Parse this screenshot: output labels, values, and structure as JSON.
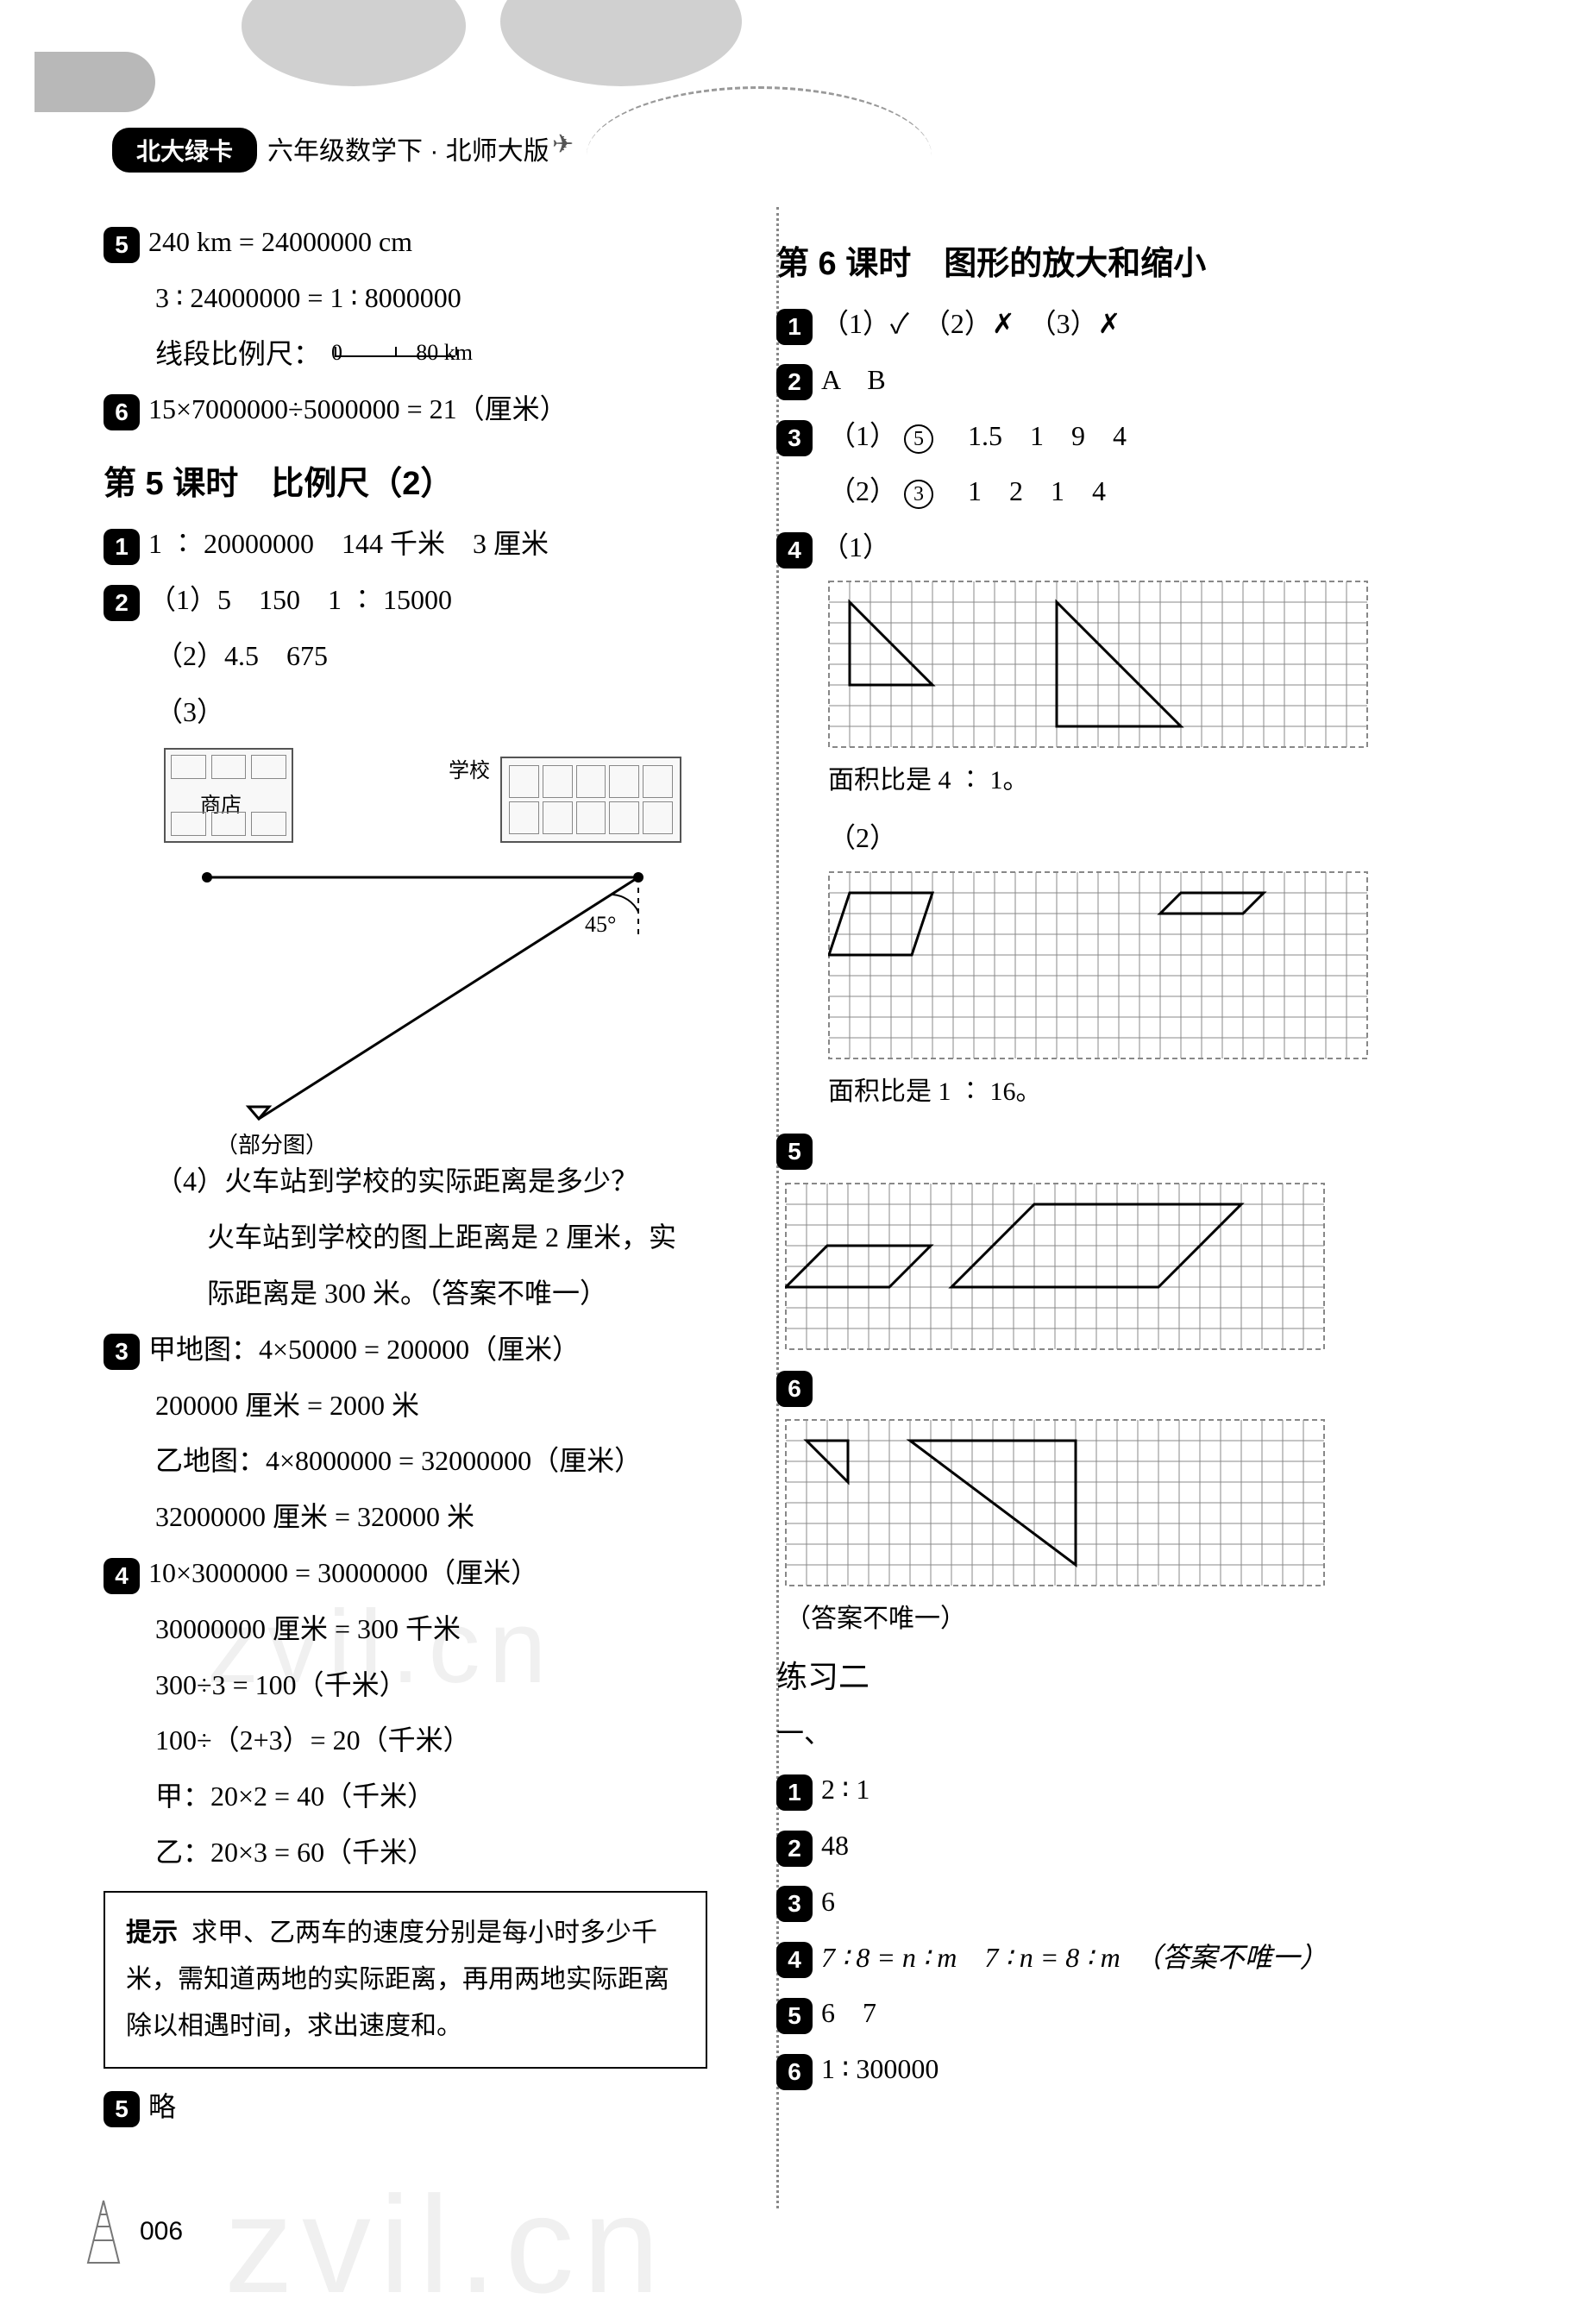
{
  "header": {
    "badge": "北大绿卡",
    "subtitle": "六年级数学下 · 北师大版"
  },
  "left": {
    "q5_l1": "240 km = 24000000 cm",
    "q5_l2": "3 ∶ 24000000 = 1 ∶ 8000000",
    "q5_l3_prefix": "线段比例尺：",
    "q6": "15×7000000÷5000000 = 21（厘米）",
    "section5_title": "第 5 课时　比例尺（2）",
    "s5_q1": "1 ∶ 20000000　144 千米　3 厘米",
    "s5_q2_1": "（1）5　150　1 ∶ 15000",
    "s5_q2_2": "（2）4.5　675",
    "s5_q2_3_label": "（3）",
    "diagram": {
      "shop": "商店",
      "school": "学校",
      "angle": "45°",
      "triangle_label": "（部分图）"
    },
    "s5_q2_4_q": "（4）火车站到学校的实际距离是多少？",
    "s5_q2_4_a1": "火车站到学校的图上距离是 2 厘米，实",
    "s5_q2_4_a2": "际距离是 300 米。（答案不唯一）",
    "s5_q3_l1": "甲地图：4×50000 = 200000（厘米）",
    "s5_q3_l2": "200000 厘米 = 2000 米",
    "s5_q3_l3": "乙地图：4×8000000 = 32000000（厘米）",
    "s5_q3_l4": "32000000 厘米 = 320000 米",
    "s5_q4_l1": "10×3000000 = 30000000（厘米）",
    "s5_q4_l2": "30000000 厘米 = 300 千米",
    "s5_q4_l3": "300÷3 = 100（千米）",
    "s5_q4_l4": "100÷（2+3）= 20（千米）",
    "s5_q4_l5": "甲：20×2 = 40（千米）",
    "s5_q4_l6": "乙：20×3 = 60（千米）",
    "tip_label": "提示",
    "tip_body": "求甲、乙两车的速度分别是每小时多少千米，需知道两地的实际距离，再用两地实际距离除以相遇时间，求出速度和。",
    "s5_q5": "略"
  },
  "right": {
    "section6_title": "第 6 课时　图形的放大和缩小",
    "s6_q1": "（1）✓　（2）✗　（3）✗",
    "s6_q2": "A　B",
    "s6_q3_1_prefix": "（1）",
    "s6_q3_1_circ": "5",
    "s6_q3_1_rest": "　1.5　1　9　4",
    "s6_q3_2_prefix": "（2）",
    "s6_q3_2_circ": "3",
    "s6_q3_2_rest": "　1　2　1　4",
    "s6_q4_1_label": "（1）",
    "s6_q4_1_cap": "面积比是 4 ∶ 1。",
    "s6_q4_2_label": "（2）",
    "s6_q4_2_cap": "面积比是 1 ∶ 16。",
    "s6_q6_cap": "（答案不唯一）",
    "practice_title": "练习二",
    "practice_sec1": "一、",
    "p_q1": "2 ∶ 1",
    "p_q2": "48",
    "p_q3": "6",
    "p_q4": "7 ∶ 8 = n ∶ m　7 ∶ n = 8 ∶ m　（答案不唯一）",
    "p_q5": "6　7",
    "p_q6": "1 ∶ 300000"
  },
  "grids": {
    "cell": 24,
    "stroke": "#888888",
    "shape_stroke": "#000000",
    "shape_width": 3,
    "fig4_1": {
      "cols": 26,
      "rows": 8,
      "triangles": [
        [
          [
            1,
            1
          ],
          [
            1,
            5
          ],
          [
            5,
            5
          ]
        ],
        [
          [
            11,
            1
          ],
          [
            11,
            7
          ],
          [
            17,
            7
          ]
        ]
      ]
    },
    "fig4_2": {
      "cols": 26,
      "rows": 9,
      "paras": [
        [
          [
            1,
            1
          ],
          [
            5,
            1
          ],
          [
            4,
            4
          ],
          [
            0,
            4
          ]
        ],
        [
          [
            17,
            1
          ],
          [
            21,
            1
          ],
          [
            20,
            2
          ],
          [
            16,
            2
          ]
        ]
      ]
    },
    "fig5": {
      "cols": 26,
      "rows": 8,
      "paras": [
        [
          [
            2,
            3
          ],
          [
            7,
            3
          ],
          [
            5,
            5
          ],
          [
            0,
            5
          ]
        ],
        [
          [
            12,
            1
          ],
          [
            22,
            1
          ],
          [
            18,
            5
          ],
          [
            8,
            5
          ]
        ]
      ]
    },
    "fig6": {
      "cols": 26,
      "rows": 8,
      "tri_small": [
        [
          1,
          1
        ],
        [
          3,
          1
        ],
        [
          3,
          3
        ]
      ],
      "tri_large": [
        [
          6,
          1
        ],
        [
          14,
          1
        ],
        [
          14,
          7
        ]
      ]
    }
  },
  "footer": {
    "page": "006"
  },
  "watermark": "zvil.cn"
}
